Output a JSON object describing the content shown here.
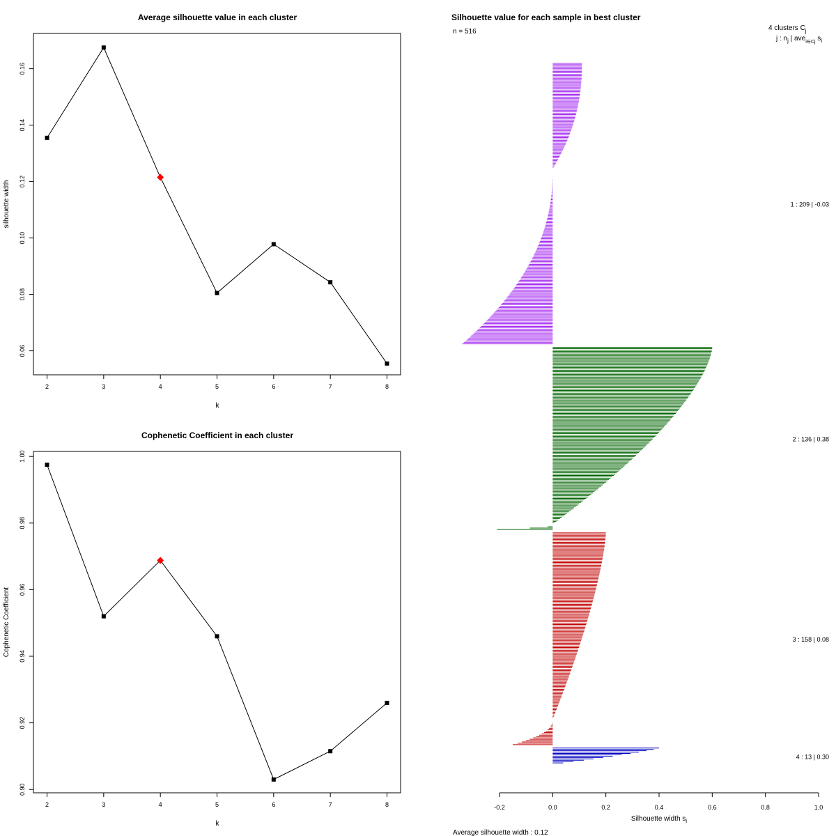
{
  "chart_data": [
    {
      "type": "line",
      "title": "Average silhouette value in each cluster",
      "xlabel": "k",
      "ylabel": "silhouette width",
      "x": [
        2,
        3,
        4,
        5,
        6,
        7,
        8
      ],
      "values": [
        0.1355,
        0.1675,
        0.1215,
        0.0805,
        0.0978,
        0.0843,
        0.0555
      ],
      "highlight_k": 4,
      "highlight_color": "#ff0000",
      "xlim": [
        1.76,
        8.24
      ],
      "ylim": [
        0.0515,
        0.1725
      ],
      "xticks": [
        "2",
        "3",
        "4",
        "5",
        "6",
        "7",
        "8"
      ],
      "yticks": [
        "0.06",
        "0.08",
        "0.10",
        "0.12",
        "0.14",
        "0.16"
      ],
      "ytick_values": [
        0.06,
        0.08,
        0.1,
        0.12,
        0.14,
        0.16
      ]
    },
    {
      "type": "line",
      "title": "Cophenetic Coefficient in each cluster",
      "xlabel": "k",
      "ylabel": "Cophenetic Coefficient",
      "x": [
        2,
        3,
        4,
        5,
        6,
        7,
        8
      ],
      "values": [
        0.9975,
        0.952,
        0.9688,
        0.946,
        0.903,
        0.9115,
        0.926
      ],
      "highlight_k": 4,
      "highlight_color": "#ff0000",
      "xlim": [
        1.76,
        8.24
      ],
      "ylim": [
        0.899,
        1.0015
      ],
      "xticks": [
        "2",
        "3",
        "4",
        "5",
        "6",
        "7",
        "8"
      ],
      "yticks": [
        "0.90",
        "0.92",
        "0.94",
        "0.96",
        "0.98",
        "1.00"
      ],
      "ytick_values": [
        0.9,
        0.92,
        0.94,
        0.96,
        0.98,
        1.0
      ]
    },
    {
      "type": "bar",
      "orientation": "horizontal",
      "title": "Silhouette value for each sample in best cluster",
      "n_label": "n = 516",
      "xlabel": "Silhouette width s",
      "xlabel_sub": "i",
      "xlim": [
        -0.2,
        1.0
      ],
      "xticks": [
        "-0.2",
        "0.0",
        "0.2",
        "0.4",
        "0.6",
        "0.8",
        "1.0"
      ],
      "xtick_values": [
        -0.2,
        0.0,
        0.2,
        0.4,
        0.6,
        0.8,
        1.0
      ],
      "header_line1": "4  clusters  C",
      "header_line1_sub": "j",
      "header_line2": "j :  n",
      "header_line2_rest": " | ave",
      "header_line2_sub2": "i∈Cj",
      "header_line2_end": " s",
      "header_line2_sub3": "i",
      "average_label": "Average silhouette width :  0.12",
      "clusters": [
        {
          "label": "1 :   209  |  -0.03",
          "n": 209,
          "color": "#a020f0",
          "max": 0.11,
          "min": -0.34,
          "pos_frac": 0.38,
          "curve": 2.2
        },
        {
          "label": "2 :   136  |  0.38",
          "n": 136,
          "color": "#006400",
          "max": 0.6,
          "min": -0.21,
          "pos_frac": 0.97,
          "curve": 1.5
        },
        {
          "label": "3 :   158  |  0.08",
          "n": 158,
          "color": "#c00000",
          "max": 0.2,
          "min": -0.15,
          "pos_frac": 0.88,
          "curve": 1.4
        },
        {
          "label": "4 :   13  |  0.30",
          "n": 13,
          "color": "#0000c0",
          "max": 0.4,
          "min": 0.015,
          "pos_frac": 1.0,
          "curve": 1.2
        }
      ]
    }
  ]
}
